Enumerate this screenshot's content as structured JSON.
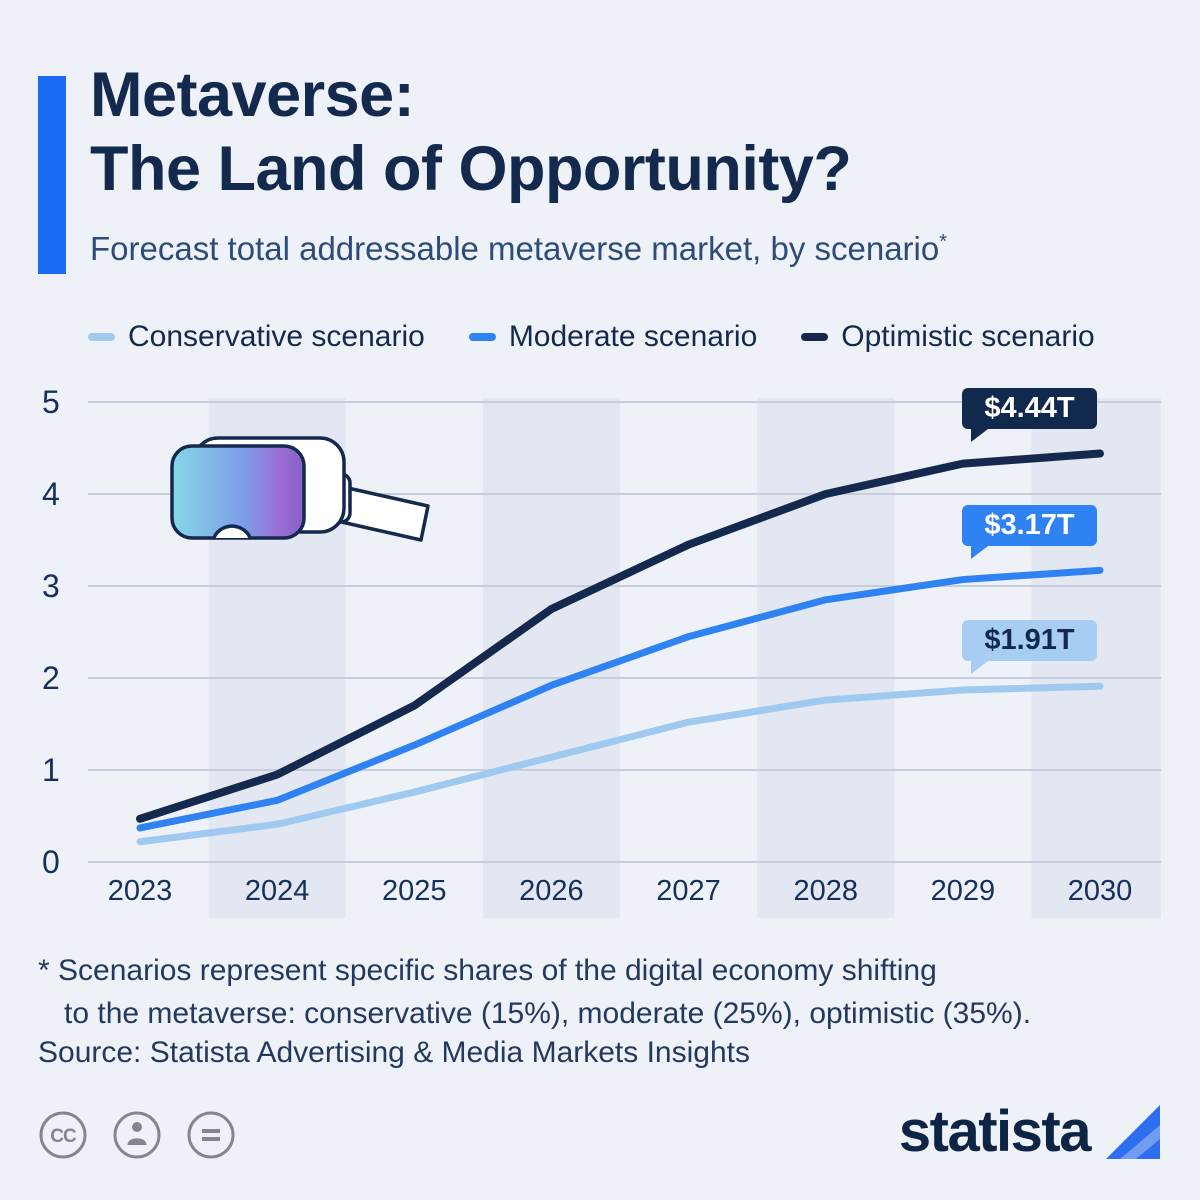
{
  "header": {
    "title_line1": "Metaverse:",
    "title_line2": "The Land of Opportunity?",
    "subtitle": "Forecast total addressable metaverse market, by scenario",
    "subtitle_note": "*"
  },
  "chart_data": {
    "type": "line",
    "title": "Forecast total addressable metaverse market, by scenario",
    "x": [
      2023,
      2024,
      2025,
      2026,
      2027,
      2028,
      2029,
      2030
    ],
    "series": [
      {
        "id": "conservative",
        "name": "Conservative scenario",
        "color": "#a0c9ef",
        "values": [
          0.22,
          0.41,
          0.76,
          1.14,
          1.52,
          1.76,
          1.87,
          1.91
        ],
        "end_label": "$1.91T"
      },
      {
        "id": "moderate",
        "name": "Moderate scenario",
        "color": "#2e82f2",
        "values": [
          0.37,
          0.67,
          1.27,
          1.92,
          2.45,
          2.85,
          3.07,
          3.17
        ],
        "end_label": "$3.17T"
      },
      {
        "id": "optimistic",
        "name": "Optimistic scenario",
        "color": "#15294e",
        "values": [
          0.47,
          0.95,
          1.7,
          2.75,
          3.45,
          4.0,
          4.33,
          4.44
        ],
        "end_label": "$4.44T"
      }
    ],
    "ylim": [
      0,
      5
    ],
    "yticks": [
      0,
      1,
      2,
      3,
      4,
      5
    ],
    "unit": "trillion USD",
    "grid": true,
    "legend_position": "top",
    "band_years": [
      2024,
      2026,
      2028,
      2030
    ],
    "band_color": "#e2e7f2",
    "gridline_color": "#c6cddc",
    "axis_label_color": "#16305c"
  },
  "footnote": {
    "line1": "* Scenarios represent specific shares of the digital economy shifting",
    "line2": "to the metaverse: conservative (15%), moderate (25%), optimistic (35%)."
  },
  "source": "Source: Statista Advertising & Media Markets Insights",
  "branding": {
    "logo_text": "statista",
    "logo_color": "#2d6ff0"
  },
  "colors": {
    "accent_bar": "#1b6af3",
    "title": "#13294d",
    "background": "#eef1f8"
  }
}
